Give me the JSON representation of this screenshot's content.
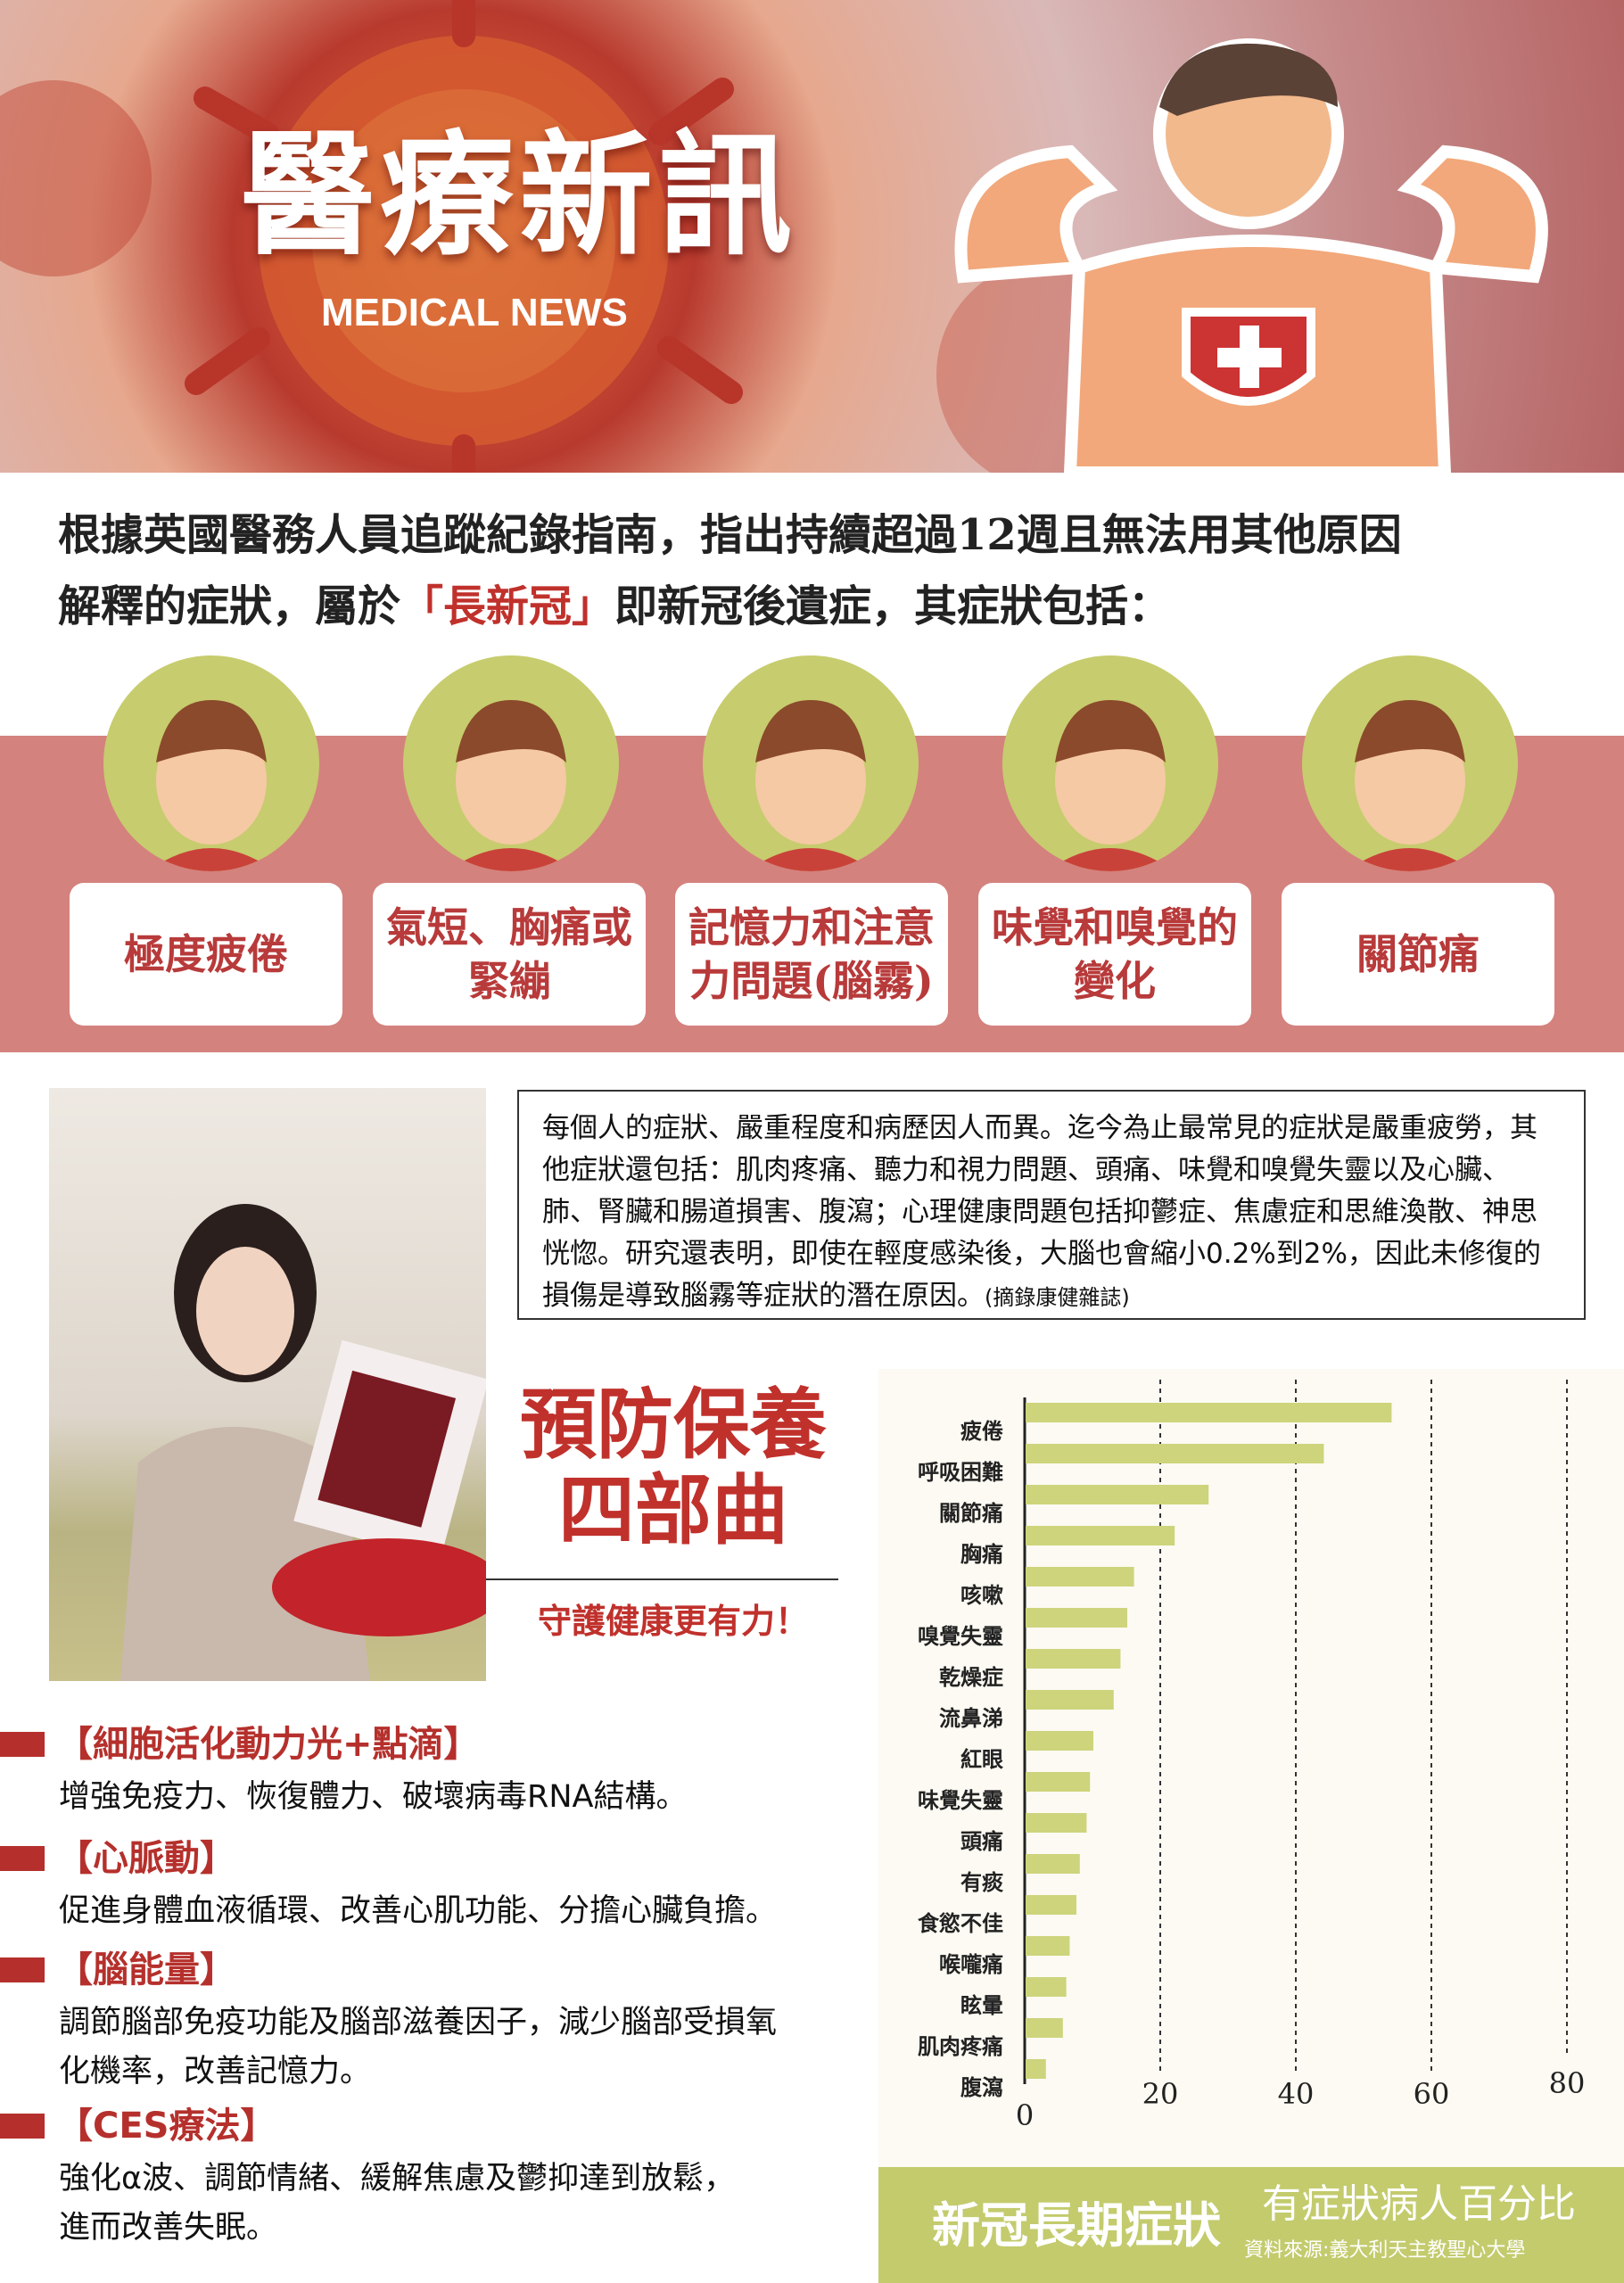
{
  "hero": {
    "title": "醫療新訊",
    "subtitle": "MEDICAL NEWS"
  },
  "intro": {
    "line1": "根據英國醫務人員追蹤紀錄指南，指出持續超過12週且無法用其他原因",
    "line2_pre": "解釋的症狀，屬於",
    "line2_highlight": "「長新冠」",
    "line2_post": "即新冠後遺症，其症狀包括："
  },
  "symptoms": [
    {
      "label": "極度疲倦",
      "icon": "tired-face-icon"
    },
    {
      "label": "氣短、胸痛或緊繃",
      "icon": "chest-pain-icon"
    },
    {
      "label": "記憶力和注意力問題(腦霧)",
      "icon": "headache-icon"
    },
    {
      "label": "味覺和嗅覺的變化",
      "icon": "smell-icon"
    },
    {
      "label": "關節痛",
      "icon": "knee-pain-icon"
    }
  ],
  "textbox": {
    "body": "每個人的症狀、嚴重程度和病歷因人而異。迄今為止最常見的症狀是嚴重疲勞，其他症狀還包括：肌肉疼痛、聽力和視力問題、頭痛、味覺和嗅覺失靈以及心臟、肺、腎臟和腸道損害、腹瀉；心理健康問題包括抑鬱症、焦慮症和思維渙散、神思恍惚。研究還表明，即使在輕度感染後，大腦也會縮小0.2%到2%，因此未修復的損傷是導致腦霧等症狀的潛在原因。",
    "source": "(摘錄康健雜誌)"
  },
  "prevention": {
    "title_line1": "預防保養",
    "title_line2": "四部曲",
    "subtitle": "守護健康更有力！"
  },
  "tips": [
    {
      "heading": "【細胞活化動力光+點滴】",
      "body": [
        "增強免疫力、恢復體力、破壞病毒RNA結構。"
      ]
    },
    {
      "heading": "【心脈動】",
      "body": [
        "促進身體血液循環、改善心肌功能、分擔心臟負擔。"
      ]
    },
    {
      "heading": "【腦能量】",
      "body": [
        "調節腦部免疫功能及腦部滋養因子，減少腦部受損氧",
        "化機率，改善記憶力。"
      ]
    },
    {
      "heading": "【CES療法】",
      "body": [
        "強化α波、調節情緒、緩解焦慮及鬱抑達到放鬆，",
        "進而改善失眠。"
      ]
    }
  ],
  "colors": {
    "accent_red": "#c0312c",
    "band_pink": "#d4827e",
    "bar_green": "#cdd47c",
    "footer_green": "#c3cb6d"
  },
  "chart_data": {
    "type": "bar",
    "orientation": "horizontal",
    "title": "新冠長期症狀",
    "xlabel": "有症狀病人百分比",
    "source": "資料來源:義大利天主教聖心大學",
    "categories": [
      "疲倦",
      "呼吸困難",
      "關節痛",
      "胸痛",
      "咳嗽",
      "嗅覺失靈",
      "乾燥症",
      "流鼻涕",
      "紅眼",
      "味覺失靈",
      "頭痛",
      "有痰",
      "食慾不佳",
      "喉嚨痛",
      "眩暈",
      "肌肉疼痛",
      "腹瀉"
    ],
    "values": [
      54,
      44,
      27,
      22,
      16,
      15,
      14,
      13,
      10,
      9.5,
      9,
      8,
      7.5,
      6.5,
      6,
      5.5,
      3
    ],
    "xlim": [
      0,
      80
    ],
    "xticks": [
      "0",
      "20",
      "40",
      "60",
      "80"
    ],
    "grid": "vertical dashed"
  }
}
